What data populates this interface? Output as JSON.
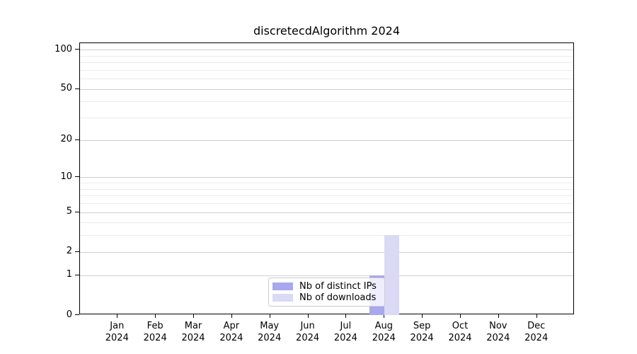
{
  "chart_data": {
    "type": "bar",
    "title": "discretecdAlgorithm 2024",
    "categories": [
      "Jan",
      "Feb",
      "Mar",
      "Apr",
      "May",
      "Jun",
      "Jul",
      "Aug",
      "Sep",
      "Oct",
      "Nov",
      "Dec"
    ],
    "x_year_label": "2024",
    "series": [
      {
        "name": "Nb of distinct IPs",
        "color": "#a8a8ee",
        "values": [
          0,
          0,
          0,
          0,
          0,
          0,
          0,
          1,
          0,
          0,
          0,
          0
        ]
      },
      {
        "name": "Nb of downloads",
        "color": "#dadaf4",
        "values": [
          0,
          0,
          0,
          0,
          0,
          0,
          0,
          3,
          0,
          0,
          0,
          0
        ]
      }
    ],
    "xlabel": "",
    "ylabel": "",
    "yscale": "log1p",
    "ylim": [
      0,
      112
    ],
    "yticks": [
      0,
      1,
      2,
      5,
      10,
      20,
      50,
      100
    ],
    "yticks_minor": [
      3,
      4,
      6,
      7,
      8,
      9,
      30,
      40,
      60,
      70,
      80,
      90
    ],
    "grid": "horizontal, major and minor",
    "legend_position": "lower center, overlapping Aug bars",
    "colors": {
      "grid_major": "#cfcfcf",
      "grid_minor": "#ececec",
      "spine": "#000000",
      "background": "#ffffff"
    }
  }
}
